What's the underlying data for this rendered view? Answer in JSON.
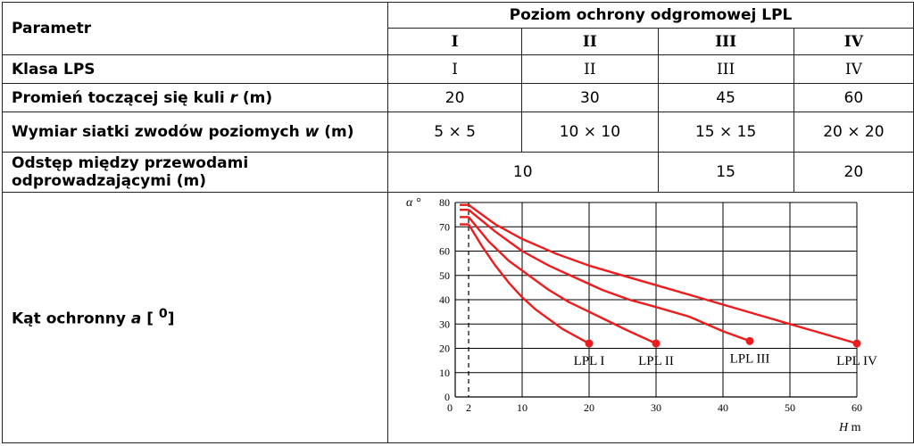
{
  "table": {
    "param_header": "Parametr",
    "group_header": "Poziom ochrony odgromowej LPL",
    "levels": [
      "I",
      "II",
      "III",
      "IV"
    ],
    "rows": {
      "lps_class": {
        "label": "Klasa LPS",
        "values": [
          "I",
          "II",
          "III",
          "IV"
        ]
      },
      "sphere_radius": {
        "label_pre": "Promień toczącej się kuli ",
        "label_var": "r",
        "label_post": " (m)",
        "values": [
          "20",
          "30",
          "45",
          "60"
        ]
      },
      "mesh_size": {
        "label_pre": "Wymiar siatki zwodów poziomych ",
        "label_var": "w",
        "label_post": " (m)",
        "values": [
          "5 × 5",
          "10 × 10",
          "15 × 15",
          "20 × 20"
        ]
      },
      "down_spacing": {
        "label": "Odstęp między przewodami odprowadzającymi (m)",
        "values": [
          "10",
          "15",
          "20"
        ]
      },
      "angle": {
        "label_pre": "Kąt ochronny ",
        "label_var": "a",
        "label_mid": " [ ",
        "label_sup": "0",
        "label_post": "]"
      }
    }
  },
  "chart_data": {
    "type": "line",
    "ylabel": "α °",
    "xlabel_var": "H",
    "xlabel_unit": "m",
    "xlim": [
      0,
      60
    ],
    "ylim": [
      0,
      80
    ],
    "x_ticks": [
      0,
      2,
      10,
      20,
      30,
      40,
      50,
      60
    ],
    "y_ticks": [
      0,
      10,
      20,
      30,
      40,
      50,
      60,
      70,
      80
    ],
    "dashed_x": 2,
    "grid": true,
    "colors": {
      "curve": "#ee1c1c",
      "grid": "#000000"
    },
    "series": [
      {
        "name": "LPL I",
        "x": [
          2,
          4,
          6,
          8,
          10,
          12,
          14,
          16,
          18,
          20
        ],
        "y": [
          71,
          62,
          54,
          47,
          41,
          36,
          32,
          28,
          25,
          22
        ]
      },
      {
        "name": "LPL II",
        "x": [
          2,
          5,
          8,
          11,
          14,
          17,
          20,
          23,
          26,
          30
        ],
        "y": [
          74,
          64,
          56,
          50,
          44,
          39,
          35,
          31,
          27,
          22
        ]
      },
      {
        "name": "LPL III",
        "x": [
          2,
          6,
          10,
          14,
          18,
          22,
          26,
          30,
          35,
          40,
          44
        ],
        "y": [
          77,
          68,
          60,
          54,
          49,
          44,
          40,
          37,
          33,
          27,
          23
        ]
      },
      {
        "name": "LPL IV",
        "x": [
          2,
          6,
          10,
          15,
          20,
          25,
          30,
          35,
          40,
          45,
          50,
          55,
          60
        ],
        "y": [
          79,
          71,
          65,
          59,
          54,
          50,
          46,
          42,
          38,
          34,
          30,
          26,
          22
        ]
      }
    ]
  }
}
